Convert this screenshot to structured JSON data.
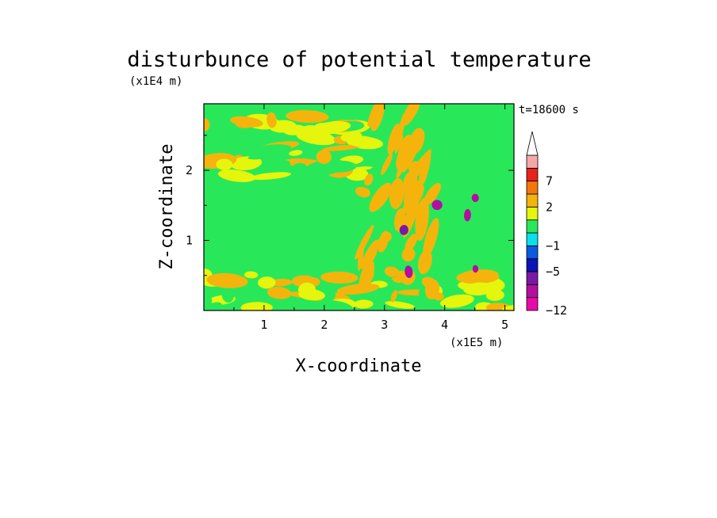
{
  "chart_data": {
    "type": "heatmap",
    "title": "disturbunce of potential temperature",
    "xlabel": "X-coordinate",
    "ylabel": "Z-coordinate",
    "x_unit": "(x1E5 m)",
    "y_unit": "(x1E4 m)",
    "time_label": "t=18600 s",
    "xlim": [
      0,
      5.15
    ],
    "ylim": [
      0,
      2.95
    ],
    "x_ticks": [
      1,
      2,
      3,
      4,
      5
    ],
    "y_ticks": [
      1,
      2
    ],
    "colorbar": {
      "levels": [
        -12,
        -10,
        -8,
        -5,
        -3,
        -1,
        0,
        1,
        2,
        4,
        7,
        9,
        11
      ],
      "tick_labels": [
        "-12",
        "-5",
        "-1",
        "2",
        "7"
      ],
      "tick_levels": [
        -12,
        -5,
        -1,
        2,
        7
      ],
      "colors": [
        "#e80aa8",
        "#b40ea0",
        "#7a18a8",
        "#0c12b4",
        "#0a5ae0",
        "#0ae0ec",
        "#28e85a",
        "#e6f50c",
        "#f5b40c",
        "#f2780e",
        "#e6221a",
        "#f5a8a8"
      ],
      "extend": "max"
    },
    "field_summary": [
      {
        "feature": "background",
        "x": [
          0,
          5.15
        ],
        "z": [
          0,
          2.95
        ],
        "value": -0.5
      },
      {
        "feature": "near-surface warm band",
        "x": [
          0,
          5.15
        ],
        "z": [
          0,
          0.55
        ],
        "value": 1.5
      },
      {
        "feature": "upper warm patches",
        "x": [
          0,
          2.8
        ],
        "z": [
          1.9,
          2.8
        ],
        "value": 1.5
      },
      {
        "feature": "central wave plume",
        "x": [
          2.6,
          3.8
        ],
        "z": [
          0.2,
          2.9
        ],
        "value": 3
      },
      {
        "feature": "cold cores",
        "x": [
          3.1,
          4.6
        ],
        "z": [
          0.5,
          2.1
        ],
        "value": -8
      }
    ]
  }
}
